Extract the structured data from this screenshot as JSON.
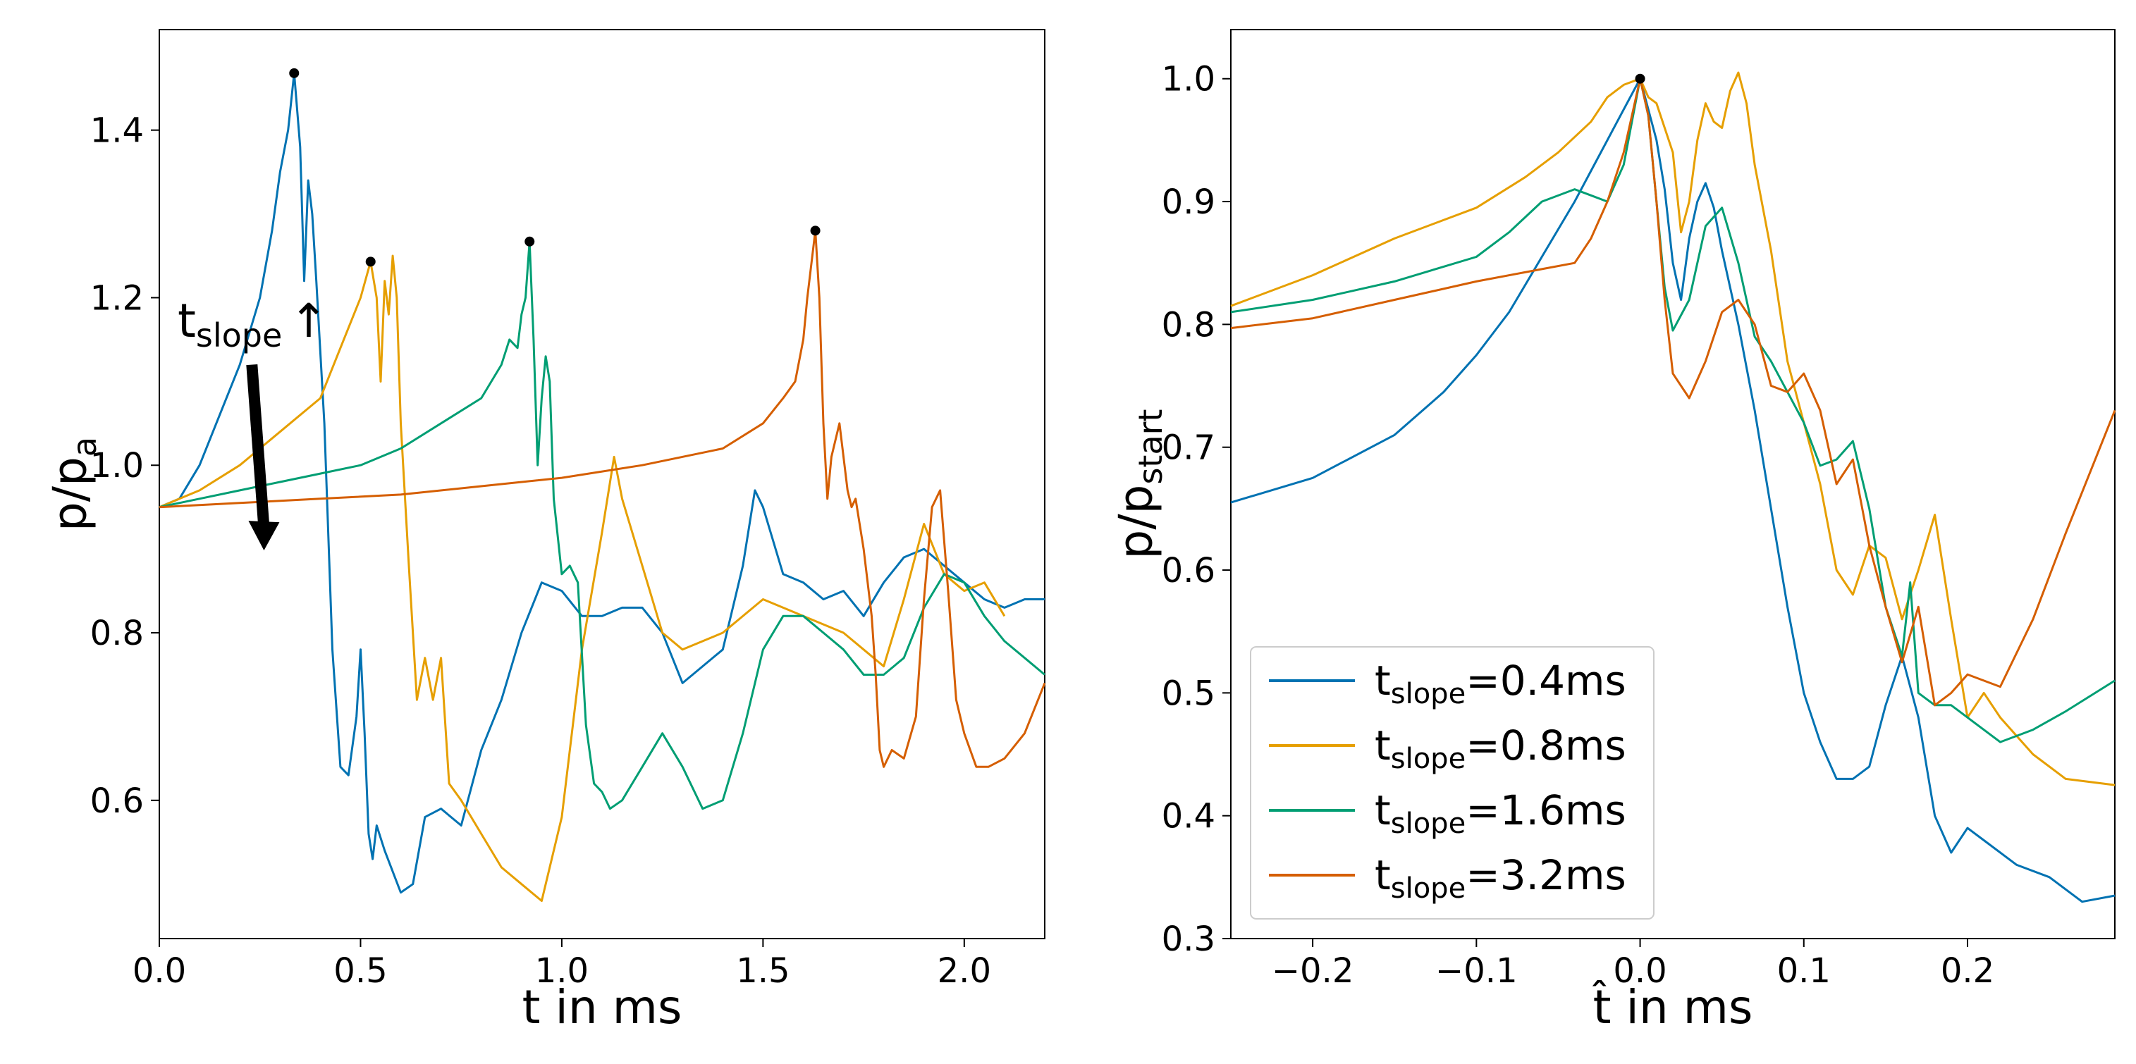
{
  "chart_data": [
    {
      "type": "line",
      "title": "",
      "xlabel": "t in ms",
      "ylabel_main": "p/p",
      "ylabel_sub": "a",
      "xlim": [
        0.0,
        2.2
      ],
      "ylim": [
        0.435,
        1.52
      ],
      "xticks": [
        0.0,
        0.5,
        1.0,
        1.5,
        2.0
      ],
      "xtick_labels": [
        "0.0",
        "0.5",
        "1.0",
        "1.5",
        "2.0"
      ],
      "yticks": [
        0.6,
        0.8,
        1.0,
        1.2,
        1.4
      ],
      "ytick_labels": [
        "0.6",
        "0.8",
        "1.0",
        "1.2",
        "1.4"
      ],
      "grid": false,
      "annotation": {
        "text_main": "t",
        "text_sub": "slope",
        "text_arrow": "↑",
        "arrow_from": [
          0.23,
          1.12
        ],
        "arrow_to": [
          0.26,
          0.9
        ]
      },
      "peak_markers": [
        {
          "x": 0.335,
          "y": 1.468
        },
        {
          "x": 0.525,
          "y": 1.243
        },
        {
          "x": 0.92,
          "y": 1.267
        },
        {
          "x": 1.63,
          "y": 1.28
        }
      ],
      "series": [
        {
          "name": "tslope=0.4ms",
          "color": "#0072B2",
          "x": [
            0.0,
            0.05,
            0.1,
            0.15,
            0.2,
            0.25,
            0.28,
            0.3,
            0.32,
            0.335,
            0.35,
            0.36,
            0.37,
            0.38,
            0.39,
            0.41,
            0.43,
            0.45,
            0.47,
            0.49,
            0.5,
            0.51,
            0.52,
            0.53,
            0.54,
            0.56,
            0.6,
            0.63,
            0.66,
            0.7,
            0.75,
            0.8,
            0.85,
            0.9,
            0.95,
            1.0,
            1.05,
            1.1,
            1.15,
            1.2,
            1.25,
            1.3,
            1.35,
            1.4,
            1.45,
            1.48,
            1.5,
            1.55,
            1.6,
            1.65,
            1.7,
            1.75,
            1.8,
            1.85,
            1.9,
            1.95,
            2.0,
            2.05,
            2.1,
            2.15,
            2.2
          ],
          "y": [
            0.95,
            0.96,
            1.0,
            1.06,
            1.12,
            1.2,
            1.28,
            1.35,
            1.4,
            1.468,
            1.38,
            1.22,
            1.34,
            1.3,
            1.22,
            1.05,
            0.78,
            0.64,
            0.63,
            0.7,
            0.78,
            0.68,
            0.56,
            0.53,
            0.57,
            0.54,
            0.49,
            0.5,
            0.58,
            0.59,
            0.57,
            0.66,
            0.72,
            0.8,
            0.86,
            0.85,
            0.82,
            0.82,
            0.83,
            0.83,
            0.8,
            0.74,
            0.76,
            0.78,
            0.88,
            0.97,
            0.95,
            0.87,
            0.86,
            0.84,
            0.85,
            0.82,
            0.86,
            0.89,
            0.9,
            0.88,
            0.86,
            0.84,
            0.83,
            0.84,
            0.84
          ]
        },
        {
          "name": "tslope=0.8ms",
          "color": "#E69F00",
          "x": [
            0.0,
            0.1,
            0.2,
            0.3,
            0.4,
            0.45,
            0.5,
            0.525,
            0.54,
            0.55,
            0.56,
            0.57,
            0.58,
            0.59,
            0.6,
            0.62,
            0.64,
            0.66,
            0.68,
            0.7,
            0.72,
            0.75,
            0.8,
            0.85,
            0.9,
            0.95,
            1.0,
            1.05,
            1.1,
            1.13,
            1.15,
            1.2,
            1.25,
            1.3,
            1.4,
            1.5,
            1.6,
            1.65,
            1.7,
            1.75,
            1.8,
            1.85,
            1.9,
            1.95,
            2.0,
            2.05,
            2.1
          ],
          "y": [
            0.95,
            0.97,
            1.0,
            1.04,
            1.08,
            1.14,
            1.2,
            1.243,
            1.2,
            1.1,
            1.22,
            1.18,
            1.25,
            1.2,
            1.05,
            0.88,
            0.72,
            0.77,
            0.72,
            0.77,
            0.62,
            0.6,
            0.56,
            0.52,
            0.5,
            0.48,
            0.58,
            0.78,
            0.92,
            1.01,
            0.96,
            0.88,
            0.8,
            0.78,
            0.8,
            0.84,
            0.82,
            0.81,
            0.8,
            0.78,
            0.76,
            0.84,
            0.93,
            0.87,
            0.85,
            0.86,
            0.82
          ]
        },
        {
          "name": "tslope=1.6ms",
          "color": "#009E73",
          "x": [
            0.0,
            0.1,
            0.2,
            0.3,
            0.4,
            0.5,
            0.6,
            0.7,
            0.8,
            0.85,
            0.87,
            0.89,
            0.9,
            0.91,
            0.92,
            0.93,
            0.94,
            0.95,
            0.96,
            0.97,
            0.98,
            1.0,
            1.02,
            1.04,
            1.06,
            1.08,
            1.1,
            1.12,
            1.15,
            1.2,
            1.25,
            1.3,
            1.35,
            1.4,
            1.45,
            1.5,
            1.55,
            1.6,
            1.65,
            1.7,
            1.75,
            1.8,
            1.85,
            1.9,
            1.95,
            2.0,
            2.05,
            2.1,
            2.15,
            2.2
          ],
          "y": [
            0.95,
            0.96,
            0.97,
            0.98,
            0.99,
            1.0,
            1.02,
            1.05,
            1.08,
            1.12,
            1.15,
            1.14,
            1.18,
            1.2,
            1.267,
            1.15,
            1.0,
            1.08,
            1.13,
            1.1,
            0.96,
            0.87,
            0.88,
            0.86,
            0.69,
            0.62,
            0.61,
            0.59,
            0.6,
            0.64,
            0.68,
            0.64,
            0.59,
            0.6,
            0.68,
            0.78,
            0.82,
            0.82,
            0.8,
            0.78,
            0.75,
            0.75,
            0.77,
            0.83,
            0.87,
            0.86,
            0.82,
            0.79,
            0.77,
            0.75
          ]
        },
        {
          "name": "tslope=3.2ms",
          "color": "#D55E00",
          "x": [
            0.0,
            0.2,
            0.4,
            0.6,
            0.8,
            1.0,
            1.2,
            1.4,
            1.5,
            1.55,
            1.58,
            1.6,
            1.61,
            1.62,
            1.63,
            1.64,
            1.65,
            1.66,
            1.67,
            1.69,
            1.71,
            1.72,
            1.73,
            1.75,
            1.77,
            1.78,
            1.79,
            1.8,
            1.82,
            1.85,
            1.88,
            1.9,
            1.92,
            1.94,
            1.96,
            1.98,
            2.0,
            2.03,
            2.06,
            2.1,
            2.15,
            2.2
          ],
          "y": [
            0.95,
            0.955,
            0.96,
            0.965,
            0.975,
            0.985,
            1.0,
            1.02,
            1.05,
            1.08,
            1.1,
            1.15,
            1.2,
            1.24,
            1.28,
            1.2,
            1.05,
            0.96,
            1.01,
            1.05,
            0.97,
            0.95,
            0.96,
            0.9,
            0.82,
            0.75,
            0.66,
            0.64,
            0.66,
            0.65,
            0.7,
            0.84,
            0.95,
            0.97,
            0.85,
            0.72,
            0.68,
            0.64,
            0.64,
            0.65,
            0.68,
            0.74
          ]
        }
      ]
    },
    {
      "type": "line",
      "title": "",
      "xlabel": "t̂ in ms",
      "ylabel_main": "p/p",
      "ylabel_sub": "start",
      "xlim": [
        -0.25,
        0.29
      ],
      "ylim": [
        0.3,
        1.04
      ],
      "xticks": [
        -0.2,
        -0.1,
        0.0,
        0.1,
        0.2
      ],
      "xtick_labels": [
        "−0.2",
        "−0.1",
        "0.0",
        "0.1",
        "0.2"
      ],
      "yticks": [
        0.3,
        0.4,
        0.5,
        0.6,
        0.7,
        0.8,
        0.9,
        1.0
      ],
      "ytick_labels": [
        "0.3",
        "0.4",
        "0.5",
        "0.6",
        "0.7",
        "0.8",
        "0.9",
        "1.0"
      ],
      "grid": false,
      "peak_markers": [
        {
          "x": 0.0,
          "y": 1.0
        }
      ],
      "legend": {
        "placement": "lower-left",
        "entries": [
          {
            "main": "t",
            "sub": "slope",
            "tail": "=0.4ms",
            "color": "#0072B2"
          },
          {
            "main": "t",
            "sub": "slope",
            "tail": "=0.8ms",
            "color": "#E69F00"
          },
          {
            "main": "t",
            "sub": "slope",
            "tail": "=1.6ms",
            "color": "#009E73"
          },
          {
            "main": "t",
            "sub": "slope",
            "tail": "=3.2ms",
            "color": "#D55E00"
          }
        ]
      },
      "series": [
        {
          "name": "tslope=0.4ms",
          "color": "#0072B2",
          "x": [
            -0.25,
            -0.2,
            -0.15,
            -0.12,
            -0.1,
            -0.08,
            -0.06,
            -0.04,
            -0.03,
            -0.02,
            -0.01,
            0.0,
            0.01,
            0.015,
            0.02,
            0.025,
            0.03,
            0.035,
            0.04,
            0.045,
            0.05,
            0.06,
            0.07,
            0.08,
            0.09,
            0.1,
            0.11,
            0.12,
            0.13,
            0.14,
            0.15,
            0.16,
            0.17,
            0.18,
            0.19,
            0.2,
            0.21,
            0.23,
            0.25,
            0.27,
            0.29
          ],
          "y": [
            0.655,
            0.675,
            0.71,
            0.745,
            0.775,
            0.81,
            0.855,
            0.9,
            0.925,
            0.95,
            0.975,
            1.0,
            0.95,
            0.91,
            0.85,
            0.82,
            0.87,
            0.9,
            0.915,
            0.895,
            0.86,
            0.8,
            0.73,
            0.65,
            0.57,
            0.5,
            0.46,
            0.43,
            0.43,
            0.44,
            0.49,
            0.53,
            0.48,
            0.4,
            0.37,
            0.39,
            0.38,
            0.36,
            0.35,
            0.33,
            0.335
          ]
        },
        {
          "name": "tslope=0.8ms",
          "color": "#E69F00",
          "x": [
            -0.25,
            -0.2,
            -0.15,
            -0.1,
            -0.07,
            -0.05,
            -0.03,
            -0.02,
            -0.01,
            0.0,
            0.005,
            0.01,
            0.02,
            0.025,
            0.03,
            0.035,
            0.04,
            0.045,
            0.05,
            0.055,
            0.06,
            0.065,
            0.07,
            0.08,
            0.09,
            0.1,
            0.11,
            0.12,
            0.13,
            0.14,
            0.15,
            0.16,
            0.17,
            0.18,
            0.19,
            0.2,
            0.21,
            0.22,
            0.24,
            0.26,
            0.29
          ],
          "y": [
            0.815,
            0.84,
            0.87,
            0.895,
            0.92,
            0.94,
            0.965,
            0.985,
            0.995,
            1.0,
            0.985,
            0.98,
            0.94,
            0.875,
            0.9,
            0.95,
            0.98,
            0.965,
            0.96,
            0.99,
            1.005,
            0.98,
            0.93,
            0.86,
            0.77,
            0.72,
            0.67,
            0.6,
            0.58,
            0.62,
            0.61,
            0.56,
            0.6,
            0.645,
            0.56,
            0.48,
            0.5,
            0.48,
            0.45,
            0.43,
            0.425
          ]
        },
        {
          "name": "tslope=1.6ms",
          "color": "#009E73",
          "x": [
            -0.25,
            -0.2,
            -0.15,
            -0.1,
            -0.08,
            -0.06,
            -0.04,
            -0.03,
            -0.02,
            -0.01,
            0.0,
            0.005,
            0.01,
            0.015,
            0.02,
            0.03,
            0.04,
            0.05,
            0.06,
            0.07,
            0.08,
            0.09,
            0.1,
            0.11,
            0.12,
            0.13,
            0.14,
            0.15,
            0.16,
            0.165,
            0.17,
            0.18,
            0.19,
            0.2,
            0.22,
            0.24,
            0.26,
            0.29
          ],
          "y": [
            0.81,
            0.82,
            0.835,
            0.855,
            0.875,
            0.9,
            0.91,
            0.905,
            0.9,
            0.93,
            1.0,
            0.97,
            0.9,
            0.83,
            0.795,
            0.82,
            0.88,
            0.895,
            0.85,
            0.79,
            0.77,
            0.745,
            0.72,
            0.685,
            0.69,
            0.705,
            0.65,
            0.57,
            0.53,
            0.59,
            0.5,
            0.49,
            0.49,
            0.48,
            0.46,
            0.47,
            0.485,
            0.51
          ]
        },
        {
          "name": "tslope=3.2ms",
          "color": "#D55E00",
          "x": [
            -0.25,
            -0.2,
            -0.15,
            -0.1,
            -0.06,
            -0.04,
            -0.03,
            -0.02,
            -0.01,
            0.0,
            0.005,
            0.01,
            0.015,
            0.02,
            0.03,
            0.04,
            0.05,
            0.06,
            0.07,
            0.08,
            0.09,
            0.1,
            0.11,
            0.12,
            0.13,
            0.14,
            0.15,
            0.16,
            0.17,
            0.18,
            0.19,
            0.2,
            0.22,
            0.24,
            0.26,
            0.29
          ],
          "y": [
            0.797,
            0.805,
            0.82,
            0.835,
            0.845,
            0.85,
            0.87,
            0.9,
            0.94,
            1.0,
            0.97,
            0.9,
            0.82,
            0.76,
            0.74,
            0.77,
            0.81,
            0.82,
            0.8,
            0.75,
            0.745,
            0.76,
            0.73,
            0.67,
            0.69,
            0.62,
            0.57,
            0.525,
            0.57,
            0.49,
            0.5,
            0.515,
            0.505,
            0.56,
            0.63,
            0.73
          ]
        }
      ]
    }
  ]
}
